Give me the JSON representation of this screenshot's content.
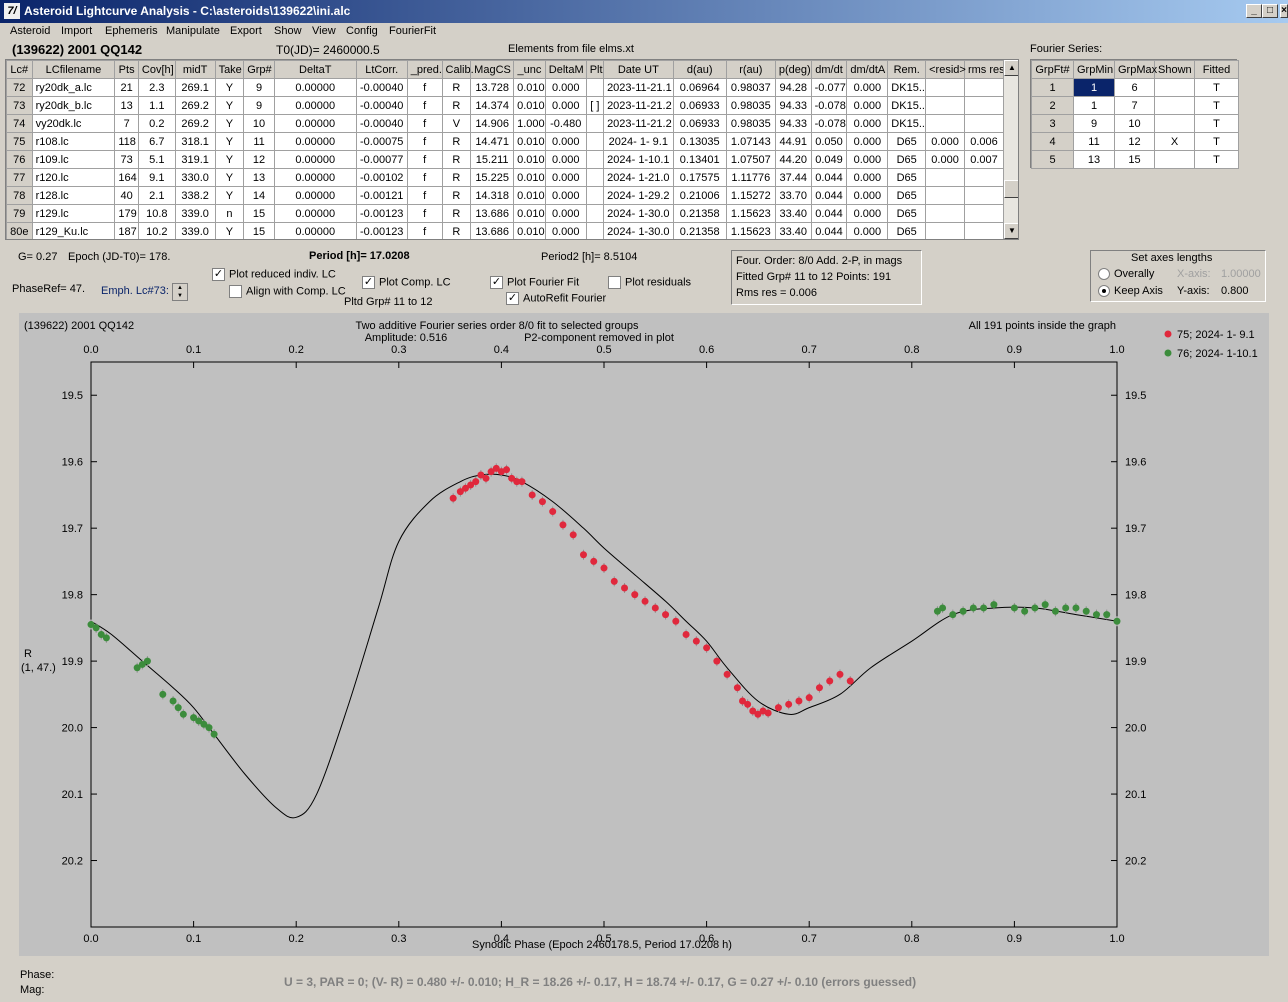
{
  "window": {
    "title": "Asteroid Lightcurve Analysis - C:\\asteroids\\139622\\ini.alc",
    "icon_label": "7/"
  },
  "menu": [
    "Asteroid",
    "Import",
    "Ephemeris",
    "Manipulate",
    "Export",
    "Show",
    "View",
    "Config",
    "FourierFit"
  ],
  "header": {
    "asteroid": "(139622) 2001 QQ142",
    "t0": "T0(JD)= 2460000.5",
    "elements": "Elements from file elms.xt",
    "fourier_series_label": "Fourier Series:"
  },
  "lc_table": {
    "columns": [
      "Lc#",
      "LCfilename",
      "Pts",
      "Cov[h]",
      "midT",
      "Take",
      "Grp#",
      "DeltaT",
      "LtCorr.",
      "_pred.",
      "Calib.",
      "MagCS",
      "_unc",
      "DeltaM",
      "Plt",
      "Date UT",
      "d(au)",
      "r(au)",
      "p(deg)",
      "dm/dt",
      "dm/dtA",
      "Rem.",
      "<resid>",
      "rms res"
    ],
    "rows": [
      [
        "72",
        "ry20dk_a.lc",
        "21",
        "2.3",
        "269.1",
        "Y",
        "9",
        "0.00000",
        "-0.00040",
        "f",
        "R",
        "13.728",
        "0.010",
        "0.000",
        "",
        "2023-11-21.1",
        "0.06964",
        "0.98037",
        "94.28",
        "-0.077",
        "0.000",
        "DK15..",
        "",
        ""
      ],
      [
        "73",
        "ry20dk_b.lc",
        "13",
        "1.1",
        "269.2",
        "Y",
        "9",
        "0.00000",
        "-0.00040",
        "f",
        "R",
        "14.374",
        "0.010",
        "0.000",
        "[ ]",
        "2023-11-21.2",
        "0.06933",
        "0.98035",
        "94.33",
        "-0.078",
        "0.000",
        "DK15..",
        "",
        ""
      ],
      [
        "74",
        "vy20dk.lc",
        "7",
        "0.2",
        "269.2",
        "Y",
        "10",
        "0.00000",
        "-0.00040",
        "f",
        "V",
        "14.906",
        "1.000",
        "-0.480",
        "",
        "2023-11-21.2",
        "0.06933",
        "0.98035",
        "94.33",
        "-0.078",
        "0.000",
        "DK15..",
        "",
        ""
      ],
      [
        "75",
        "r108.lc",
        "118",
        "6.7",
        "318.1",
        "Y",
        "11",
        "0.00000",
        "-0.00075",
        "f",
        "R",
        "14.471",
        "0.010",
        "0.000",
        "",
        "2024- 1- 9.1",
        "0.13035",
        "1.07143",
        "44.91",
        "0.050",
        "0.000",
        "D65",
        "0.000",
        "0.006"
      ],
      [
        "76",
        "r109.lc",
        "73",
        "5.1",
        "319.1",
        "Y",
        "12",
        "0.00000",
        "-0.00077",
        "f",
        "R",
        "15.211",
        "0.010",
        "0.000",
        "",
        "2024- 1-10.1",
        "0.13401",
        "1.07507",
        "44.20",
        "0.049",
        "0.000",
        "D65",
        "0.000",
        "0.007"
      ],
      [
        "77",
        "r120.lc",
        "164",
        "9.1",
        "330.0",
        "Y",
        "13",
        "0.00000",
        "-0.00102",
        "f",
        "R",
        "15.225",
        "0.010",
        "0.000",
        "",
        "2024- 1-21.0",
        "0.17575",
        "1.11776",
        "37.44",
        "0.044",
        "0.000",
        "D65",
        "",
        ""
      ],
      [
        "78",
        "r128.lc",
        "40",
        "2.1",
        "338.2",
        "Y",
        "14",
        "0.00000",
        "-0.00121",
        "f",
        "R",
        "14.318",
        "0.010",
        "0.000",
        "",
        "2024- 1-29.2",
        "0.21006",
        "1.15272",
        "33.70",
        "0.044",
        "0.000",
        "D65",
        "",
        ""
      ],
      [
        "79",
        "r129.lc",
        "179",
        "10.8",
        "339.0",
        "n",
        "15",
        "0.00000",
        "-0.00123",
        "f",
        "R",
        "13.686",
        "0.010",
        "0.000",
        "",
        "2024- 1-30.0",
        "0.21358",
        "1.15623",
        "33.40",
        "0.044",
        "0.000",
        "D65",
        "",
        ""
      ],
      [
        "80e",
        "r129_Ku.lc",
        "187",
        "10.2",
        "339.0",
        "Y",
        "15",
        "0.00000",
        "-0.00123",
        "f",
        "R",
        "13.686",
        "0.010",
        "0.000",
        "",
        "2024- 1-30.0",
        "0.21358",
        "1.15623",
        "33.40",
        "0.044",
        "0.000",
        "D65",
        "",
        ""
      ]
    ]
  },
  "fourier_table": {
    "columns": [
      "GrpFt#",
      "GrpMin",
      "GrpMax",
      "Shown",
      "Fitted"
    ],
    "rows": [
      [
        "1",
        "1",
        "6",
        "",
        "T"
      ],
      [
        "2",
        "1",
        "7",
        "",
        "T"
      ],
      [
        "3",
        "9",
        "10",
        "",
        "T"
      ],
      [
        "4",
        "11",
        "12",
        "X",
        "T"
      ],
      [
        "5",
        "13",
        "15",
        "",
        "T"
      ]
    ]
  },
  "controls": {
    "g": "G= 0.27",
    "epoch": "Epoch (JD-T0)= 178.",
    "period": "Period [h]= 17.0208",
    "period2": "Period2 [h]= 8.5104",
    "phaseref": "PhaseRef= 47.",
    "emph": "Emph. Lc#73:",
    "plot_reduced": "Plot reduced indiv. LC",
    "align": "Align with Comp. LC",
    "plot_comp": "Plot Comp. LC",
    "pltd_grp": "Pltd Grp#  11 to   12",
    "plot_fourier": "Plot Fourier Fit",
    "autorefit": "AutoRefit Fourier",
    "plot_residuals": "Plot residuals",
    "info": [
      "Four. Order:  8/0      Add. 2-P, in mags",
      "Fitted Grp# 11 to 12 Points: 191",
      "Rms res      = 0.006"
    ],
    "axes": {
      "title": "Set axes lengths",
      "overally": "Overally",
      "keep": "Keep Axis",
      "xaxis": "X-axis:",
      "xval": "1.00000",
      "yaxis": "Y-axis:",
      "yval": "0.800"
    }
  },
  "plot": {
    "name": "(139622) 2001 QQ142",
    "title1": "Two additive Fourier series order 8/0 fit to selected groups",
    "title2": "Amplitude: 0.516",
    "title3": "P2-component removed in plot",
    "inside": "All 191 points inside the graph",
    "ylabel1": "R",
    "ylabel2": "(1, 47.)",
    "xlabel": "Synodic Phase (Epoch 2460178.5, Period 17.0208 h)",
    "legend": [
      {
        "label": "75; 2024- 1- 9.1",
        "color": "#e0283c"
      },
      {
        "label": "76; 2024- 1-10.1",
        "color": "#3c8c3c"
      }
    ]
  },
  "chart_data": {
    "type": "scatter",
    "xlabel": "Synodic Phase (Epoch 2460178.5, Period 17.0208 h)",
    "ylabel": "R (1, 47.)",
    "xlim": [
      0.0,
      1.0
    ],
    "ylim": [
      20.3,
      19.45
    ],
    "y_inverted": true,
    "xticks": [
      "0.0",
      "0.1",
      "0.2",
      "0.3",
      "0.4",
      "0.5",
      "0.6",
      "0.7",
      "0.8",
      "0.9",
      "1.0"
    ],
    "yticks": [
      "19.5",
      "19.6",
      "19.7",
      "19.8",
      "19.9",
      "20.0",
      "20.1",
      "20.2"
    ],
    "grid": false,
    "legend_position": "top-right",
    "fit_curve": {
      "name": "Fourier fit",
      "x": [
        0.0,
        0.02,
        0.05,
        0.08,
        0.1,
        0.12,
        0.15,
        0.18,
        0.2,
        0.22,
        0.25,
        0.28,
        0.3,
        0.33,
        0.36,
        0.38,
        0.4,
        0.42,
        0.45,
        0.48,
        0.5,
        0.53,
        0.56,
        0.58,
        0.6,
        0.62,
        0.65,
        0.68,
        0.7,
        0.73,
        0.76,
        0.8,
        0.84,
        0.88,
        0.92,
        0.96,
        1.0
      ],
      "y": [
        19.84,
        19.86,
        19.9,
        19.94,
        19.97,
        20.01,
        20.07,
        20.12,
        20.135,
        20.1,
        19.97,
        19.82,
        19.72,
        19.66,
        19.63,
        19.62,
        19.62,
        19.63,
        19.66,
        19.7,
        19.73,
        19.77,
        19.81,
        19.84,
        19.87,
        19.91,
        19.96,
        19.98,
        19.97,
        19.95,
        19.91,
        19.87,
        19.83,
        19.82,
        19.82,
        19.83,
        19.84
      ]
    },
    "series": [
      {
        "name": "75; 2024- 1- 9.1",
        "color": "#e0283c",
        "x": [
          0.353,
          0.36,
          0.365,
          0.37,
          0.375,
          0.38,
          0.385,
          0.39,
          0.395,
          0.4,
          0.405,
          0.41,
          0.415,
          0.42,
          0.43,
          0.44,
          0.45,
          0.46,
          0.47,
          0.48,
          0.49,
          0.5,
          0.51,
          0.52,
          0.53,
          0.54,
          0.55,
          0.56,
          0.57,
          0.58,
          0.59,
          0.6,
          0.61,
          0.62,
          0.63,
          0.635,
          0.64,
          0.645,
          0.65,
          0.655,
          0.66,
          0.67,
          0.68,
          0.69,
          0.7,
          0.71,
          0.72,
          0.73,
          0.74
        ],
        "y": [
          19.655,
          19.645,
          19.64,
          19.635,
          19.63,
          19.62,
          19.625,
          19.615,
          19.61,
          19.615,
          19.612,
          19.625,
          19.63,
          19.63,
          19.65,
          19.66,
          19.675,
          19.695,
          19.71,
          19.74,
          19.75,
          19.76,
          19.78,
          19.79,
          19.8,
          19.81,
          19.82,
          19.83,
          19.84,
          19.86,
          19.87,
          19.88,
          19.9,
          19.92,
          19.94,
          19.96,
          19.965,
          19.975,
          19.98,
          19.975,
          19.978,
          19.97,
          19.965,
          19.96,
          19.955,
          19.94,
          19.93,
          19.92,
          19.93
        ]
      },
      {
        "name": "76; 2024- 1-10.1",
        "color": "#3c8c3c",
        "x": [
          0.0,
          0.005,
          0.01,
          0.015,
          0.045,
          0.05,
          0.055,
          0.07,
          0.08,
          0.085,
          0.09,
          0.1,
          0.105,
          0.11,
          0.115,
          0.12,
          0.825,
          0.83,
          0.84,
          0.85,
          0.86,
          0.87,
          0.88,
          0.9,
          0.91,
          0.92,
          0.93,
          0.94,
          0.95,
          0.96,
          0.97,
          0.98,
          0.99,
          1.0
        ],
        "y": [
          19.845,
          19.85,
          19.86,
          19.865,
          19.91,
          19.905,
          19.9,
          19.95,
          19.96,
          19.97,
          19.98,
          19.985,
          19.99,
          19.995,
          20.0,
          20.01,
          19.825,
          19.82,
          19.83,
          19.825,
          19.82,
          19.82,
          19.815,
          19.82,
          19.825,
          19.82,
          19.815,
          19.825,
          19.82,
          19.82,
          19.825,
          19.83,
          19.83,
          19.84
        ]
      }
    ]
  },
  "status": {
    "phase": "Phase:",
    "mag": "Mag:",
    "summary": "U = 3, PAR = 0; (V- R) = 0.480 +/- 0.010; H_R = 18.26 +/- 0.17, H = 18.74 +/- 0.17, G = 0.27 +/- 0.10 (errors guessed)"
  }
}
